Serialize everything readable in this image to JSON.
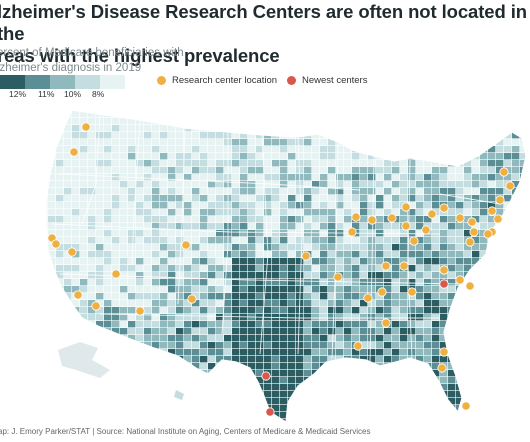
{
  "title": "lzheimer's Disease Research Centers are often not located in the\nreas with the highest prevalence",
  "subtitle": "ercent of Medicare beneficiaries with\nlzheimer's diagnosis in 2019",
  "legend": {
    "scale_colors": [
      "#2b5d63",
      "#5b8f95",
      "#8fb9bd",
      "#c3dde0",
      "#e7f2f3"
    ],
    "scale_labels": [
      "12%",
      "11%",
      "10%",
      "8%"
    ],
    "research_label": "Research center location",
    "research_color": "#efb040",
    "newest_label": "Newest centers",
    "newest_color": "#d9574b"
  },
  "credit": "ap: J. Emory Parker/STAT |  Source: National Institute on Aging, Centers of Medicare & Medicaid Services"
}
